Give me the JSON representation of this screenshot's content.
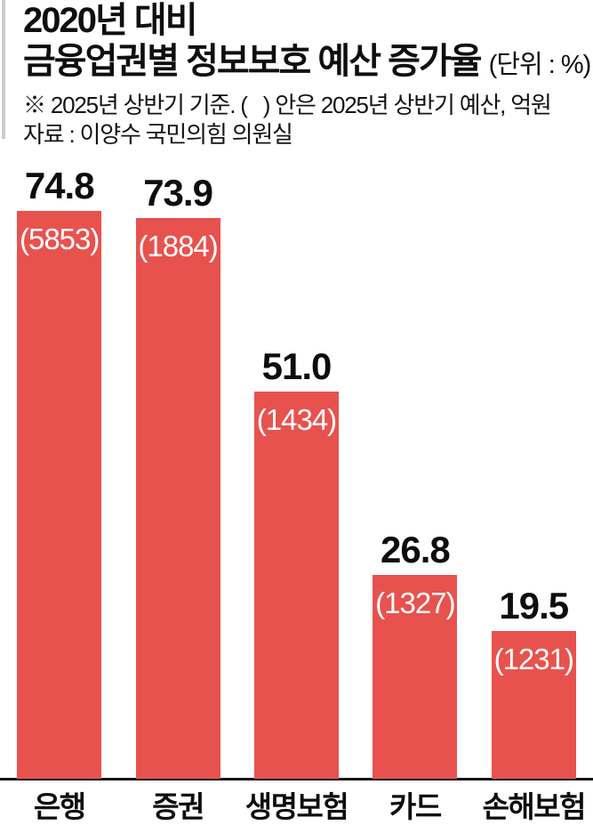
{
  "header": {
    "title_line1": "2020년 대비",
    "title_line2": "금융업권별 정보보호 예산 증가율",
    "unit_note": "(단위 : %)",
    "note": "※ 2025년 상반기 기준. (   ) 안은 2025년 상반기 예산, 억원",
    "source": "자료 : 이양수 국민의힘 의원실"
  },
  "chart_data": {
    "type": "bar",
    "title": "2020년 대비 금융업권별 정보보호 예산 증가율",
    "unit": "단위 : %",
    "categories": [
      "은행",
      "증권",
      "생명보험",
      "카드",
      "손해보험"
    ],
    "values": [
      74.8,
      73.9,
      51.0,
      26.8,
      19.5
    ],
    "value_labels": [
      "74.8",
      "73.9",
      "51.0",
      "26.8",
      "19.5"
    ],
    "bar_annotations": [
      "(5853)",
      "(1884)",
      "(1434)",
      "(1327)",
      "(1231)"
    ],
    "annotation_note": "2025년 상반기 예산, 억원",
    "ylim": [
      0,
      80
    ],
    "grid": false,
    "legend": "none",
    "bar_color": "#e8524e",
    "value_label_color": "#0d0d0d",
    "annotation_text_color": "#ffffff",
    "baseline_color": "#151515"
  },
  "decor": {
    "left_rule_color": "#cbcbcb"
  }
}
